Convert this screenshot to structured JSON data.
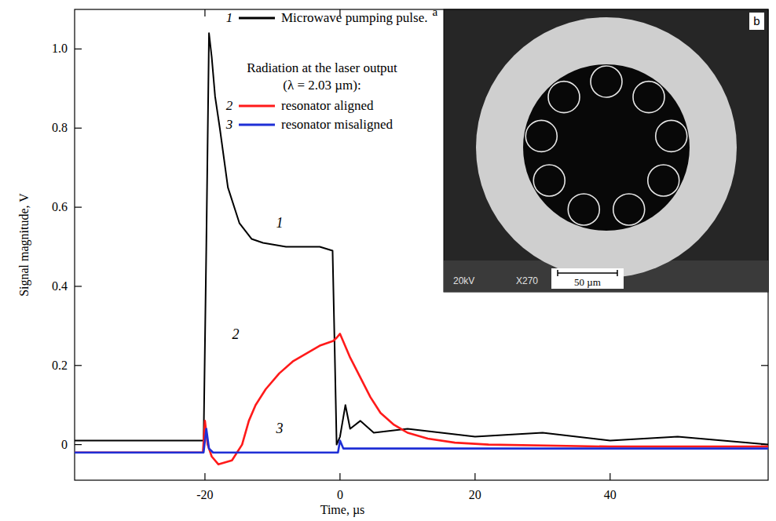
{
  "chart_data": {
    "type": "line",
    "panel_label": "a",
    "x_label": "Time, µs",
    "y_label": "Signal magnitude, V",
    "xlim": [
      -39.3,
      63.4
    ],
    "ylim": [
      -0.09,
      1.1
    ],
    "xticks": [
      -20,
      0,
      20,
      40
    ],
    "yticks": [
      0,
      0.2,
      0.4,
      0.6,
      0.8,
      {
        "value": 1,
        "label": "1.0"
      }
    ],
    "legend": "upper left",
    "legend_heading": [
      "Radiation at the laser output",
      "(λ = 2.03 µm):"
    ],
    "series": [
      {
        "name": "Microwave pumping pulse.",
        "label": "1",
        "color": "#000000",
        "x": [
          -39.3,
          -20.2,
          -19.8,
          -19.4,
          -19,
          -18.5,
          -17.8,
          -16.6,
          -14.9,
          -13.1,
          -11.4,
          -8,
          -3,
          -1.1,
          -0.8,
          -0.5,
          0,
          0.8,
          1.5,
          3,
          5,
          10,
          20,
          30,
          40,
          50,
          63.4
        ],
        "values": [
          0.01,
          0.01,
          0.5,
          1.04,
          0.98,
          0.88,
          0.8,
          0.65,
          0.56,
          0.52,
          0.51,
          0.5,
          0.5,
          0.49,
          0.25,
          0.0,
          0.02,
          0.1,
          0.04,
          0.06,
          0.03,
          0.04,
          0.02,
          0.03,
          0.01,
          0.02,
          0.0
        ]
      },
      {
        "name": "resonator aligned",
        "label": "2",
        "color": "#ff1a1a",
        "x": [
          -39.3,
          -20.3,
          -20,
          -19.6,
          -19,
          -18,
          -16,
          -14.5,
          -13.5,
          -12.5,
          -11,
          -9,
          -7,
          -5,
          -3,
          -1,
          -0.5,
          0,
          0.5,
          1.5,
          3,
          4.5,
          6,
          8,
          10,
          13,
          17,
          22,
          40,
          63.4
        ],
        "values": [
          -0.02,
          -0.02,
          0.06,
          0.0,
          -0.03,
          -0.05,
          -0.04,
          0.0,
          0.06,
          0.1,
          0.14,
          0.18,
          0.21,
          0.23,
          0.25,
          0.262,
          0.27,
          0.28,
          0.26,
          0.22,
          0.17,
          0.12,
          0.08,
          0.05,
          0.03,
          0.015,
          0.005,
          0.0,
          -0.005,
          -0.005
        ]
      },
      {
        "name": "resonator misaligned",
        "label": "3",
        "color": "#1f2fd6",
        "x": [
          -39.3,
          -20.2,
          -19.8,
          -19.4,
          -18.8,
          -17,
          -1,
          -0.3,
          0,
          0.5,
          1,
          63.4
        ],
        "values": [
          -0.02,
          -0.02,
          0.04,
          -0.01,
          -0.02,
          -0.02,
          -0.02,
          -0.02,
          0.01,
          -0.01,
          -0.01,
          -0.01
        ]
      }
    ],
    "inset": {
      "panel_label": "b",
      "texts": [
        "20kV",
        "X270"
      ],
      "scale_bar": "50 µm"
    }
  }
}
